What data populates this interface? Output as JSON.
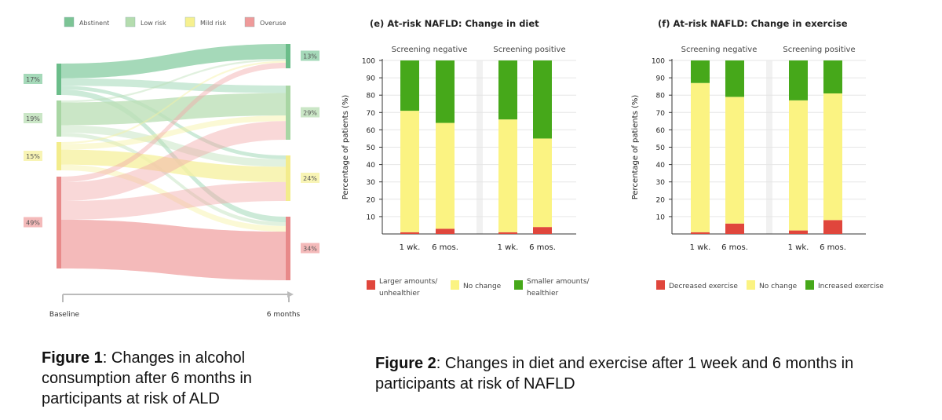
{
  "figure1": {
    "legend": [
      {
        "label": "Abstinent",
        "color": "#7cc495"
      },
      {
        "label": "Low risk",
        "color": "#b4dcae"
      },
      {
        "label": "Mild risk",
        "color": "#f6f08f"
      },
      {
        "label": "Overuse",
        "color": "#ef9a9a"
      }
    ],
    "baseline_labels": [
      "17%",
      "19%",
      "15%",
      "49%"
    ],
    "month6_labels": [
      "13%",
      "29%",
      "24%",
      "34%"
    ],
    "axis": {
      "start": "Baseline",
      "end": "6 months"
    },
    "caption": {
      "bold": "Figure 1",
      "rest": ": Changes in alcohol consumption after 6 months in participants at risk of ALD"
    }
  },
  "figure2": {
    "caption": {
      "bold": "Figure 2",
      "rest": ": Changes in diet and exercise after 1 week and 6 months in participants at risk of NAFLD"
    }
  },
  "chart_data": [
    {
      "type": "sankey",
      "title": "Changes in alcohol consumption",
      "nodes_left": {
        "label": "Baseline",
        "categories": [
          "Abstinent",
          "Low risk",
          "Mild risk",
          "Overuse"
        ],
        "percent": [
          17,
          19,
          15,
          49
        ]
      },
      "nodes_right": {
        "label": "6 months",
        "categories": [
          "Abstinent",
          "Low risk",
          "Mild risk",
          "Overuse"
        ],
        "percent": [
          13,
          29,
          24,
          34
        ]
      },
      "flows": [
        {
          "from": "Abstinent",
          "to": "Abstinent",
          "value": 8
        },
        {
          "from": "Abstinent",
          "to": "Low risk",
          "value": 4
        },
        {
          "from": "Abstinent",
          "to": "Mild risk",
          "value": 2
        },
        {
          "from": "Abstinent",
          "to": "Overuse",
          "value": 3
        },
        {
          "from": "Low risk",
          "to": "Abstinent",
          "value": 1
        },
        {
          "from": "Low risk",
          "to": "Low risk",
          "value": 12
        },
        {
          "from": "Low risk",
          "to": "Mild risk",
          "value": 4
        },
        {
          "from": "Low risk",
          "to": "Overuse",
          "value": 2
        },
        {
          "from": "Mild risk",
          "to": "Abstinent",
          "value": 1
        },
        {
          "from": "Mild risk",
          "to": "Low risk",
          "value": 3
        },
        {
          "from": "Mild risk",
          "to": "Mild risk",
          "value": 8
        },
        {
          "from": "Mild risk",
          "to": "Overuse",
          "value": 3
        },
        {
          "from": "Overuse",
          "to": "Abstinent",
          "value": 3
        },
        {
          "from": "Overuse",
          "to": "Low risk",
          "value": 10
        },
        {
          "from": "Overuse",
          "to": "Mild risk",
          "value": 10
        },
        {
          "from": "Overuse",
          "to": "Overuse",
          "value": 26
        }
      ]
    },
    {
      "type": "bar",
      "stacked": true,
      "title": "(e) At-risk NAFLD: Change in diet",
      "ylabel": "Percentage of patients (%)",
      "ylim": [
        0,
        100
      ],
      "yticks": [
        10,
        20,
        30,
        40,
        50,
        60,
        70,
        80,
        90,
        100
      ],
      "groups": [
        "Screening negative",
        "Screening positive"
      ],
      "categories": [
        "1 wk.",
        "6 mos.",
        "1 wk.",
        "6 mos."
      ],
      "series": [
        {
          "name": "Larger amounts/ unhealthier",
          "lines": [
            "Larger amounts/",
            "unhealthier"
          ],
          "color": "#e0463c",
          "values": [
            1,
            3,
            1,
            4
          ]
        },
        {
          "name": "No change",
          "lines": [
            "No change"
          ],
          "color": "#fbf382",
          "values": [
            70,
            61,
            65,
            51
          ]
        },
        {
          "name": "Smaller amounts/ healthier",
          "lines": [
            "Smaller amounts/",
            "healthier"
          ],
          "color": "#46a81a",
          "values": [
            29,
            36,
            34,
            45
          ]
        }
      ]
    },
    {
      "type": "bar",
      "stacked": true,
      "title": "(f) At-risk NAFLD: Change in exercise",
      "ylabel": "Percentage of patients (%)",
      "ylim": [
        0,
        100
      ],
      "yticks": [
        10,
        20,
        30,
        40,
        50,
        60,
        70,
        80,
        90,
        100
      ],
      "groups": [
        "Screening negative",
        "Screening positive"
      ],
      "categories": [
        "1 wk.",
        "6 mos.",
        "1 wk.",
        "6 mos."
      ],
      "series": [
        {
          "name": "Decreased exercise",
          "lines": [
            "Decreased exercise"
          ],
          "color": "#e0463c",
          "values": [
            1,
            6,
            2,
            8
          ]
        },
        {
          "name": "No change",
          "lines": [
            "No change"
          ],
          "color": "#fbf382",
          "values": [
            86,
            73,
            75,
            73
          ]
        },
        {
          "name": "Increased exercise",
          "lines": [
            "Increased exercise"
          ],
          "color": "#46a81a",
          "values": [
            13,
            21,
            23,
            19
          ]
        }
      ]
    }
  ]
}
